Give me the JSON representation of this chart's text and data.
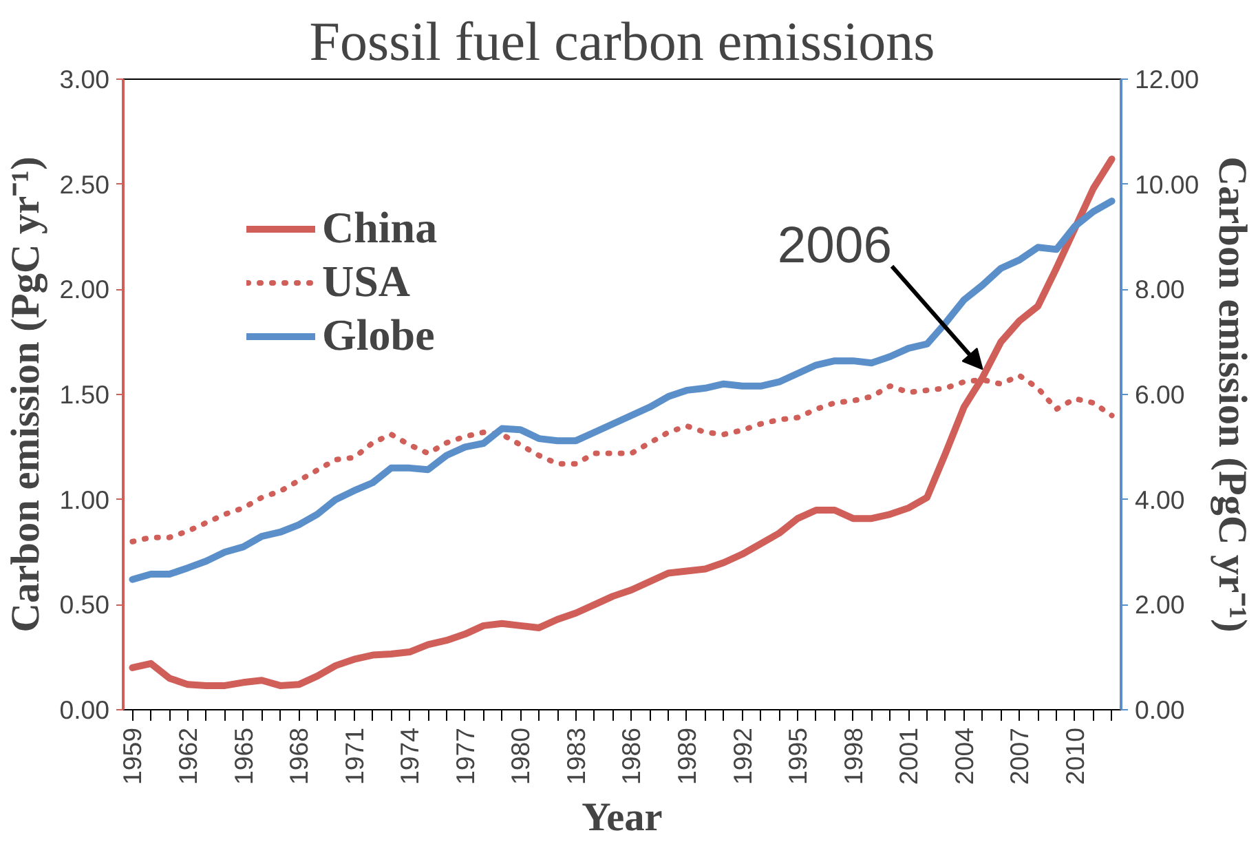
{
  "chart_data": {
    "type": "line",
    "title": "Fossil fuel carbon emissions",
    "xlabel": "Year",
    "ylabel": "Carbon emission (PgC yr⁻¹)",
    "y2label": "Carbon emission (PgC yr⁻¹)",
    "x": [
      1959,
      1960,
      1961,
      1962,
      1963,
      1964,
      1965,
      1966,
      1967,
      1968,
      1969,
      1970,
      1971,
      1972,
      1973,
      1974,
      1975,
      1976,
      1977,
      1978,
      1979,
      1980,
      1981,
      1982,
      1983,
      1984,
      1985,
      1986,
      1987,
      1988,
      1989,
      1990,
      1991,
      1992,
      1993,
      1994,
      1995,
      1996,
      1997,
      1998,
      1999,
      2000,
      2001,
      2002,
      2003,
      2004,
      2005,
      2006,
      2007,
      2008,
      2009,
      2010,
      2011,
      2012
    ],
    "xlim": [
      1958.5,
      2012.5
    ],
    "xticks": [
      1959,
      1962,
      1965,
      1968,
      1971,
      1974,
      1977,
      1980,
      1983,
      1986,
      1989,
      1992,
      1995,
      1998,
      2001,
      2004,
      2007,
      2010
    ],
    "ylim": [
      0,
      3
    ],
    "yticks": [
      {
        "value": 0,
        "label": "0.00"
      },
      {
        "value": 0.5,
        "label": "0.50"
      },
      {
        "value": 1,
        "label": "1.00"
      },
      {
        "value": 1.5,
        "label": "1.50"
      },
      {
        "value": 2,
        "label": "2.00"
      },
      {
        "value": 2.5,
        "label": "2.50"
      },
      {
        "value": 3,
        "label": "3.00"
      }
    ],
    "y2lim": [
      0,
      12
    ],
    "y2ticks": [
      {
        "value": 0,
        "label": "0.00"
      },
      {
        "value": 2,
        "label": "2.00"
      },
      {
        "value": 4,
        "label": "4.00"
      },
      {
        "value": 6,
        "label": "6.00"
      },
      {
        "value": 8,
        "label": "8.00"
      },
      {
        "value": 10,
        "label": "10.00"
      },
      {
        "value": 12,
        "label": "12.00"
      }
    ],
    "series": [
      {
        "name": "China",
        "color": "#cf5f58",
        "line_style": "solid",
        "values": [
          0.2,
          0.22,
          0.15,
          0.12,
          0.115,
          0.115,
          0.13,
          0.14,
          0.115,
          0.12,
          0.16,
          0.21,
          0.24,
          0.26,
          0.265,
          0.275,
          0.31,
          0.33,
          0.36,
          0.4,
          0.41,
          0.4,
          0.39,
          0.43,
          0.46,
          0.5,
          0.54,
          0.57,
          0.61,
          0.65,
          0.66,
          0.67,
          0.7,
          0.74,
          0.79,
          0.84,
          0.91,
          0.95,
          0.95,
          0.91,
          0.91,
          0.93,
          0.96,
          1.01,
          1.22,
          1.44,
          1.58,
          1.75,
          1.85,
          1.92,
          2.1,
          2.29,
          2.48,
          2.62
        ]
      },
      {
        "name": "USA",
        "color": "#cf5f58",
        "line_style": "dotted",
        "values": [
          0.8,
          0.82,
          0.82,
          0.85,
          0.89,
          0.93,
          0.96,
          1.01,
          1.04,
          1.09,
          1.14,
          1.19,
          1.2,
          1.27,
          1.31,
          1.26,
          1.22,
          1.27,
          1.3,
          1.32,
          1.31,
          1.26,
          1.21,
          1.17,
          1.17,
          1.22,
          1.22,
          1.22,
          1.27,
          1.32,
          1.35,
          1.32,
          1.31,
          1.33,
          1.36,
          1.38,
          1.39,
          1.43,
          1.46,
          1.47,
          1.49,
          1.54,
          1.51,
          1.52,
          1.53,
          1.56,
          1.57,
          1.55,
          1.59,
          1.53,
          1.43,
          1.48,
          1.46,
          1.4
        ]
      },
      {
        "name": "Globe",
        "color": "#5b8fc9",
        "line_style": "solid",
        "axis": "y2",
        "values": [
          2.48,
          2.58,
          2.58,
          2.7,
          2.83,
          3.0,
          3.1,
          3.3,
          3.38,
          3.52,
          3.72,
          4.0,
          4.17,
          4.32,
          4.6,
          4.6,
          4.57,
          4.84,
          5.0,
          5.07,
          5.35,
          5.33,
          5.16,
          5.12,
          5.12,
          5.28,
          5.44,
          5.6,
          5.76,
          5.96,
          6.08,
          6.12,
          6.2,
          6.16,
          6.16,
          6.24,
          6.4,
          6.56,
          6.64,
          6.64,
          6.6,
          6.72,
          6.88,
          6.96,
          7.36,
          7.8,
          8.08,
          8.4,
          8.56,
          8.8,
          8.76,
          9.2,
          9.48,
          9.68
        ]
      }
    ],
    "annotations": [
      {
        "text": "2006",
        "x": 2005,
        "y": 1.58
      }
    ],
    "legend": "top left",
    "grid": false,
    "marker": "none"
  }
}
